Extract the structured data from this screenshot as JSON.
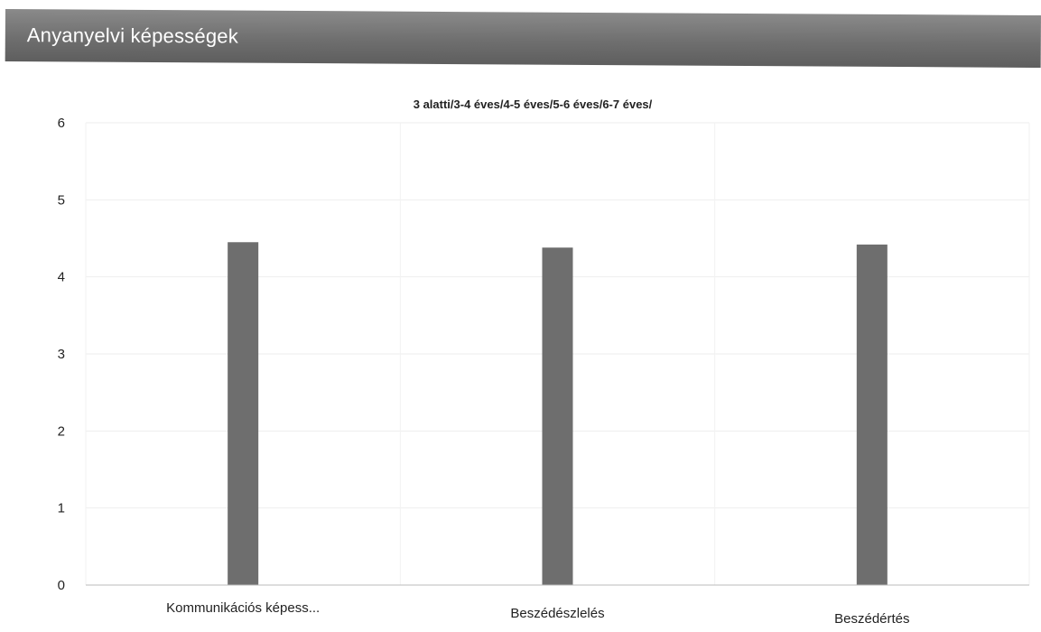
{
  "section": {
    "title": "Anyanyelvi képességek"
  },
  "colors": {
    "bar": "#6e6e6e",
    "header": "#707070",
    "axis_text": "#222222"
  },
  "chart_data": {
    "type": "bar",
    "title": "3 alatti/3-4 éves/4-5 éves/5-6 éves/6-7 éves/",
    "categories": [
      "Kommunikációs képess...",
      "Beszédészlelés",
      "Beszédértés"
    ],
    "values": [
      4.45,
      4.38,
      4.42
    ],
    "ylim": [
      0,
      6
    ],
    "yticks": [
      "0",
      "1",
      "2",
      "3",
      "4",
      "5",
      "6"
    ],
    "grid": true
  }
}
